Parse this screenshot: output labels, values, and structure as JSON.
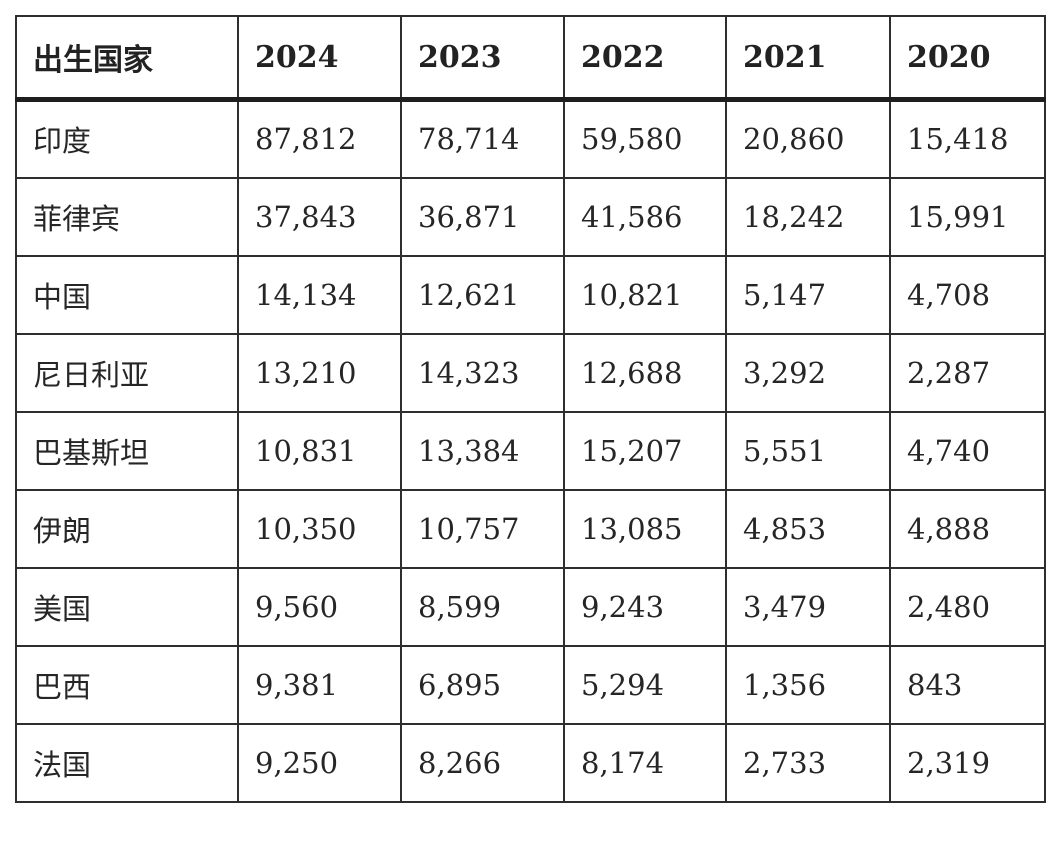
{
  "table": {
    "header": [
      "出生国家",
      "2024",
      "2023",
      "2022",
      "2021",
      "2020"
    ],
    "rows": [
      {
        "country": "印度",
        "values": [
          "87,812",
          "78,714",
          "59,580",
          "20,860",
          "15,418"
        ]
      },
      {
        "country": "菲律宾",
        "values": [
          "37,843",
          "36,871",
          "41,586",
          "18,242",
          "15,991"
        ]
      },
      {
        "country": "中国",
        "values": [
          "14,134",
          "12,621",
          "10,821",
          "5,147",
          "4,708"
        ]
      },
      {
        "country": "尼日利亚",
        "values": [
          "13,210",
          "14,323",
          "12,688",
          "3,292",
          "2,287"
        ]
      },
      {
        "country": "巴基斯坦",
        "values": [
          "10,831",
          "13,384",
          "15,207",
          "5,551",
          "4,740"
        ]
      },
      {
        "country": "伊朗",
        "values": [
          "10,350",
          "10,757",
          "13,085",
          "4,853",
          "4,888"
        ]
      },
      {
        "country": "美国",
        "values": [
          "9,560",
          "8,599",
          "9,243",
          "3,479",
          "2,480"
        ]
      },
      {
        "country": "巴西",
        "values": [
          "9,381",
          "6,895",
          "5,294",
          "1,356",
          "843"
        ]
      },
      {
        "country": "法国",
        "values": [
          "9,250",
          "8,266",
          "8,174",
          "2,733",
          "2,319"
        ]
      }
    ]
  },
  "chart_data": {
    "type": "table",
    "title": "",
    "columns": [
      "出生国家",
      "2024",
      "2023",
      "2022",
      "2021",
      "2020"
    ],
    "rows": [
      [
        "印度",
        87812,
        78714,
        59580,
        20860,
        15418
      ],
      [
        "菲律宾",
        37843,
        36871,
        41586,
        18242,
        15991
      ],
      [
        "中国",
        14134,
        12621,
        10821,
        5147,
        4708
      ],
      [
        "尼日利亚",
        13210,
        14323,
        12688,
        3292,
        2287
      ],
      [
        "巴基斯坦",
        10831,
        13384,
        15207,
        5551,
        4740
      ],
      [
        "伊朗",
        10350,
        10757,
        13085,
        4853,
        4888
      ],
      [
        "美国",
        9560,
        8599,
        9243,
        3479,
        2480
      ],
      [
        "巴西",
        9381,
        6895,
        5294,
        1356,
        843
      ],
      [
        "法国",
        9250,
        8266,
        8174,
        2733,
        2319
      ]
    ]
  },
  "colors": {
    "background": "#ffffff",
    "border": "#2e2e2e",
    "header_rule": "#1e1e1e",
    "text": "#262626"
  }
}
